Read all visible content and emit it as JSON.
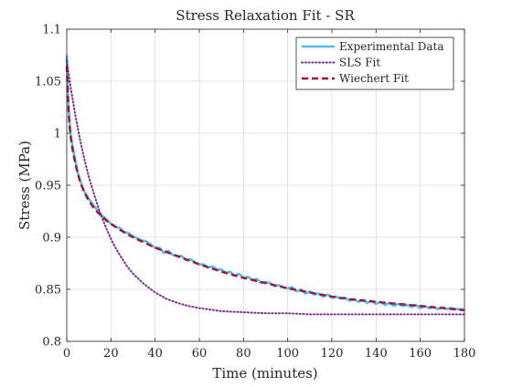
{
  "chart_data": {
    "type": "line",
    "title": "Stress Relaxation Fit - SR",
    "xlabel": "Time (minutes)",
    "ylabel": "Stress (MPa)",
    "xlim": [
      0,
      180
    ],
    "ylim": [
      0.8,
      1.1
    ],
    "xticks": [
      0,
      20,
      40,
      60,
      80,
      100,
      120,
      140,
      160,
      180
    ],
    "yticks": [
      0.8,
      0.85,
      0.9,
      0.95,
      1,
      1.05,
      1.1
    ],
    "xtick_labels": [
      "0",
      "20",
      "40",
      "60",
      "80",
      "100",
      "120",
      "140",
      "160",
      "180"
    ],
    "ytick_labels": [
      "0.8",
      "0.85",
      "0.9",
      "0.95",
      "1",
      "1.05",
      "1.1"
    ],
    "grid": true,
    "legend_position": "top-right",
    "series": [
      {
        "name": "Experimental Data",
        "color": "#4DBEEE",
        "style": "solid",
        "x": [
          0,
          0.5,
          1,
          1.5,
          2,
          3,
          4,
          5,
          6,
          7,
          8,
          10,
          12,
          14,
          16,
          18,
          20,
          22,
          24,
          26,
          28,
          30,
          32,
          34,
          36,
          38,
          40,
          42,
          44,
          46,
          48,
          50,
          52,
          54,
          56,
          58,
          60,
          62,
          64,
          66,
          68,
          70,
          72,
          74,
          76,
          78,
          80,
          82,
          84,
          86,
          88,
          90,
          92,
          94,
          96,
          98,
          100,
          102,
          104,
          106,
          108,
          110,
          112,
          114,
          116,
          118,
          120,
          122,
          124,
          126,
          128,
          130,
          132,
          134,
          136,
          138,
          140,
          142,
          144,
          146,
          148,
          150,
          152,
          154,
          156,
          158,
          160,
          162,
          164,
          166,
          168,
          170,
          172,
          174,
          176,
          178,
          180
        ],
        "y": [
          1.075,
          1.04,
          1.02,
          1.005,
          0.995,
          0.983,
          0.972,
          0.962,
          0.955,
          0.949,
          0.944,
          0.937,
          0.931,
          0.926,
          0.921,
          0.917,
          0.913,
          0.91,
          0.909,
          0.905,
          0.904,
          0.901,
          0.899,
          0.897,
          0.896,
          0.893,
          0.89,
          0.89,
          0.885,
          0.887,
          0.883,
          0.882,
          0.882,
          0.878,
          0.879,
          0.876,
          0.874,
          0.874,
          0.871,
          0.872,
          0.869,
          0.869,
          0.866,
          0.867,
          0.863,
          0.865,
          0.861,
          0.862,
          0.859,
          0.86,
          0.856,
          0.857,
          0.856,
          0.853,
          0.854,
          0.852,
          0.851,
          0.852,
          0.848,
          0.85,
          0.846,
          0.848,
          0.845,
          0.846,
          0.843,
          0.845,
          0.842,
          0.843,
          0.841,
          0.842,
          0.839,
          0.841,
          0.838,
          0.84,
          0.837,
          0.839,
          0.836,
          0.838,
          0.835,
          0.837,
          0.834,
          0.836,
          0.834,
          0.835,
          0.833,
          0.835,
          0.832,
          0.834,
          0.832,
          0.833,
          0.831,
          0.833,
          0.831,
          0.832,
          0.831,
          0.831,
          0.83
        ]
      },
      {
        "name": "SLS Fit",
        "color": "#7E2F8E",
        "style": "dotted",
        "x": [
          0,
          2,
          4,
          6,
          8,
          10,
          12,
          15,
          18,
          21,
          24,
          27,
          30,
          35,
          40,
          45,
          50,
          55,
          60,
          70,
          80,
          90,
          100,
          110,
          120,
          130,
          140,
          150,
          160,
          170,
          180
        ],
        "y": [
          1.07,
          1.041,
          1.016,
          0.994,
          0.975,
          0.958,
          0.944,
          0.924,
          0.908,
          0.894,
          0.883,
          0.873,
          0.865,
          0.855,
          0.847,
          0.841,
          0.837,
          0.834,
          0.832,
          0.829,
          0.828,
          0.827,
          0.827,
          0.826,
          0.826,
          0.826,
          0.826,
          0.826,
          0.826,
          0.826,
          0.826
        ]
      },
      {
        "name": "Wiechert Fit",
        "color": "#A2142F",
        "style": "dashed",
        "x": [
          0,
          0.5,
          1,
          1.5,
          2,
          3,
          4,
          5,
          6,
          7,
          8,
          10,
          12,
          14,
          16,
          18,
          20,
          25,
          30,
          35,
          40,
          50,
          60,
          70,
          80,
          90,
          100,
          110,
          120,
          130,
          140,
          150,
          160,
          170,
          180
        ],
        "y": [
          1.065,
          1.035,
          1.015,
          1.002,
          0.993,
          0.98,
          0.97,
          0.961,
          0.954,
          0.948,
          0.943,
          0.935,
          0.929,
          0.924,
          0.92,
          0.916,
          0.913,
          0.906,
          0.9,
          0.895,
          0.89,
          0.882,
          0.874,
          0.867,
          0.861,
          0.856,
          0.851,
          0.847,
          0.843,
          0.84,
          0.838,
          0.836,
          0.834,
          0.832,
          0.83
        ]
      }
    ]
  }
}
